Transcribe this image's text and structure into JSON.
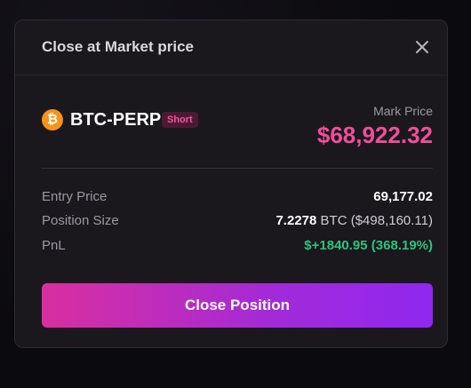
{
  "modal": {
    "title": "Close at Market price"
  },
  "market": {
    "coin_glyph": "₿",
    "symbol": "BTC-PERP",
    "side": "Short",
    "mark_price_label": "Mark Price",
    "mark_price": "$68,922.32"
  },
  "details": {
    "entry_price_label": "Entry Price",
    "entry_price": "69,177.02",
    "position_size_label": "Position Size",
    "position_size_amount": "7.2278",
    "position_size_unit": "BTC ($498,160.11)",
    "pnl_label": "PnL",
    "pnl": "$+1840.95 (368.19%)"
  },
  "actions": {
    "close_position_label": "Close Position"
  },
  "colors": {
    "accent_pink": "#f04e9a",
    "pnl_green": "#2ec27e",
    "coin_orange": "#f7931a",
    "button_gradient_start": "#d92f9f",
    "button_gradient_end": "#8f28f0"
  }
}
